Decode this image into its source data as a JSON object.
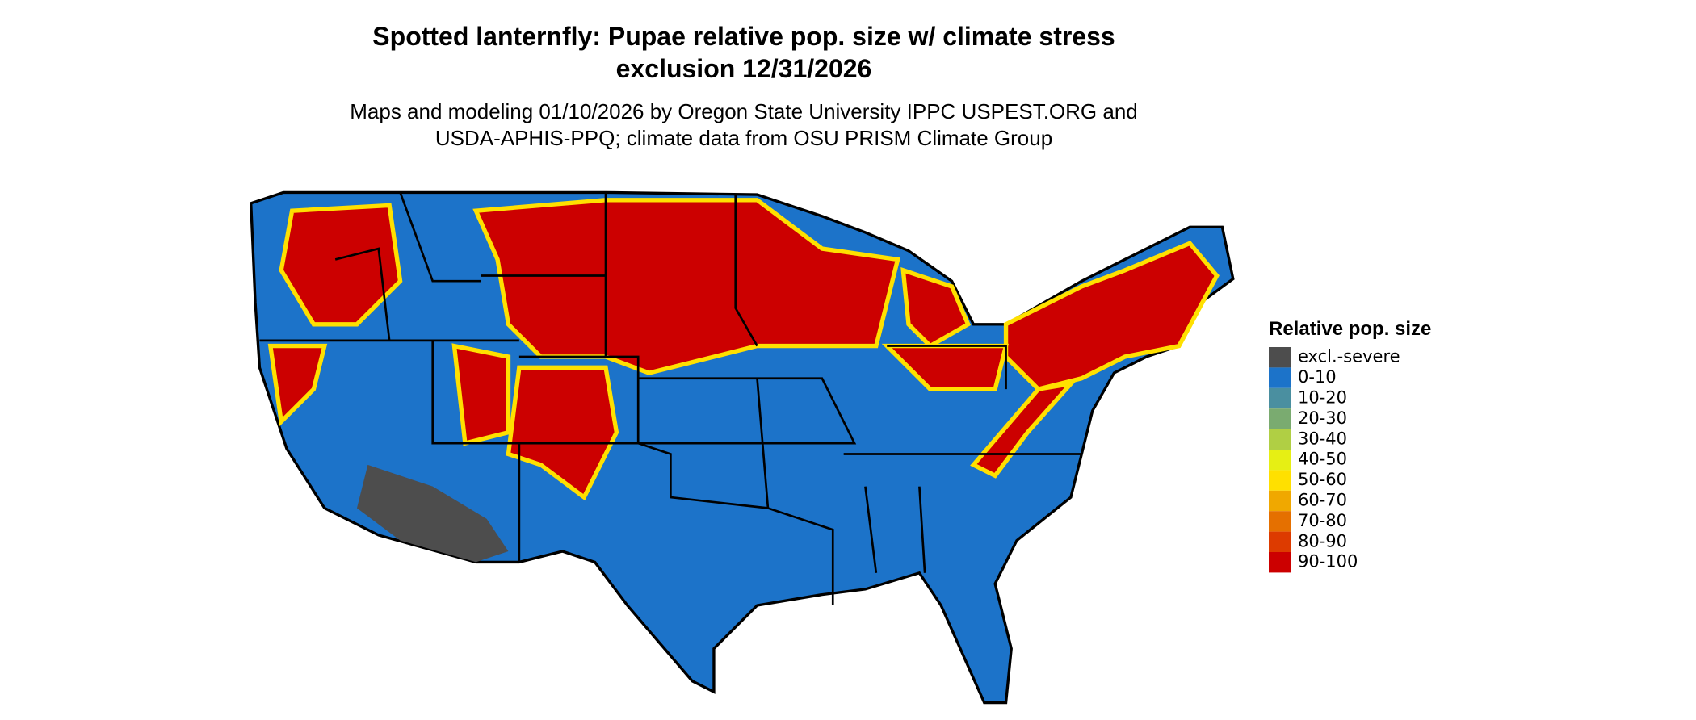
{
  "title": [
    "Spotted lanternfly: Pupae relative pop. size w/ climate stress",
    "exclusion 12/31/2026"
  ],
  "subtitle": [
    "Maps and modeling 01/10/2026 by Oregon State University IPPC USPEST.ORG and",
    "USDA-APHIS-PPQ; climate data from OSU PRISM Climate Group"
  ],
  "legend": {
    "title": "Relative pop. size",
    "items": [
      {
        "label": "excl.-severe",
        "color": "#4d4d4d"
      },
      {
        "label": "0-10",
        "color": "#1c73c9"
      },
      {
        "label": "10-20",
        "color": "#4a8fa0"
      },
      {
        "label": "20-30",
        "color": "#7aab70"
      },
      {
        "label": "30-40",
        "color": "#b0cf44"
      },
      {
        "label": "40-50",
        "color": "#e6ef14"
      },
      {
        "label": "50-60",
        "color": "#ffe000"
      },
      {
        "label": "60-70",
        "color": "#f0a800"
      },
      {
        "label": "70-80",
        "color": "#e57000"
      },
      {
        "label": "80-90",
        "color": "#dd3b00"
      },
      {
        "label": "90-100",
        "color": "#cc0000"
      }
    ]
  }
}
